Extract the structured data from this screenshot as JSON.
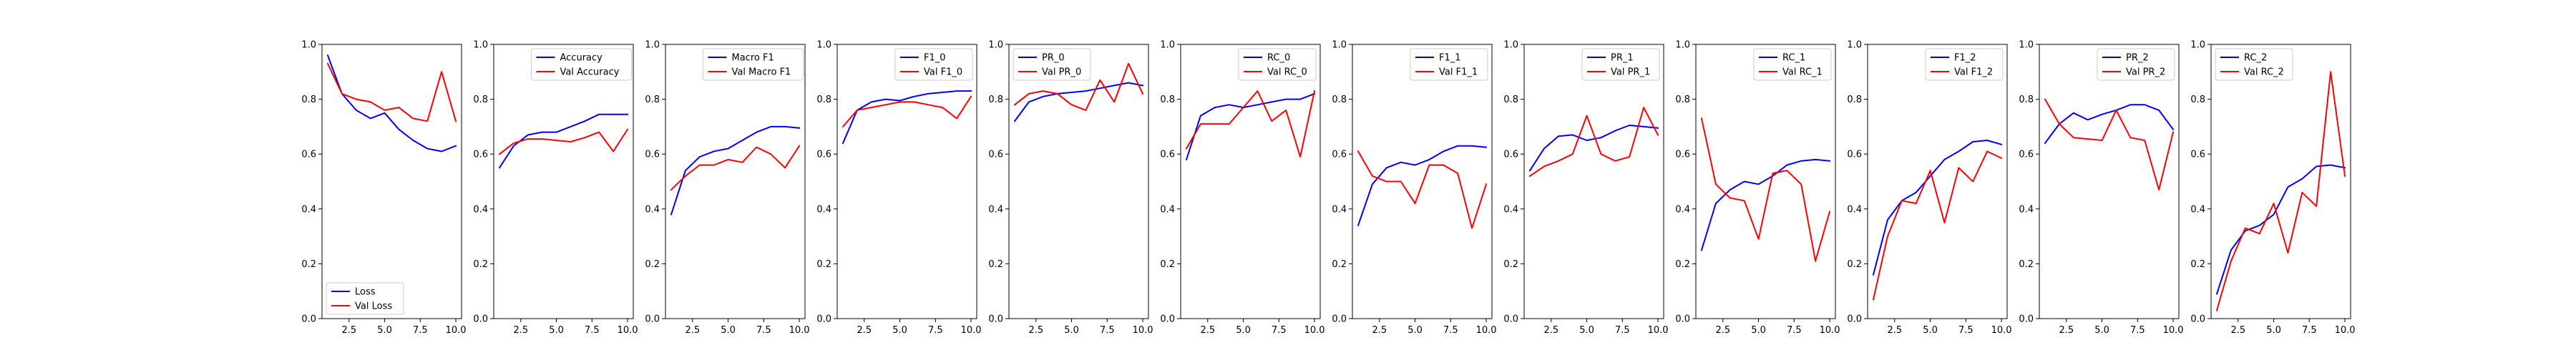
{
  "chart_data": [
    {
      "type": "line",
      "xlim": [
        0.6,
        10.4
      ],
      "ylim": [
        0.0,
        1.0
      ],
      "xticks": [
        "2.5",
        "5.0",
        "7.5",
        "10.0"
      ],
      "yticks": [
        "0.0",
        "0.2",
        "0.4",
        "0.6",
        "0.8",
        "1.0"
      ],
      "legend": "lower-left",
      "x": [
        1,
        2,
        3,
        4,
        5,
        6,
        7,
        8,
        9,
        10
      ],
      "series": [
        {
          "name": "Loss",
          "color": "#0000ff",
          "values": [
            0.96,
            0.82,
            0.76,
            0.73,
            0.75,
            0.69,
            0.65,
            0.62,
            0.61,
            0.63
          ]
        },
        {
          "name": "Val Loss",
          "color": "#ff0000",
          "values": [
            0.93,
            0.82,
            0.8,
            0.79,
            0.76,
            0.77,
            0.73,
            0.72,
            0.9,
            0.72
          ]
        }
      ]
    },
    {
      "type": "line",
      "xlim": [
        0.6,
        10.4
      ],
      "ylim": [
        0.0,
        1.0
      ],
      "xticks": [
        "2.5",
        "5.0",
        "7.5",
        "10.0"
      ],
      "yticks": [
        "0.0",
        "0.2",
        "0.4",
        "0.6",
        "0.8",
        "1.0"
      ],
      "legend": "upper-center",
      "x": [
        1,
        2,
        3,
        4,
        5,
        6,
        7,
        8,
        9,
        10
      ],
      "series": [
        {
          "name": "Accuracy",
          "color": "#0000ff",
          "values": [
            0.55,
            0.63,
            0.67,
            0.68,
            0.68,
            0.7,
            0.72,
            0.745,
            0.745,
            0.745
          ]
        },
        {
          "name": "Val Accuracy",
          "color": "#ff0000",
          "values": [
            0.6,
            0.64,
            0.655,
            0.655,
            0.65,
            0.645,
            0.66,
            0.68,
            0.61,
            0.69
          ]
        }
      ]
    },
    {
      "type": "line",
      "xlim": [
        0.6,
        10.4
      ],
      "ylim": [
        0.0,
        1.0
      ],
      "xticks": [
        "2.5",
        "5.0",
        "7.5",
        "10.0"
      ],
      "yticks": [
        "0.0",
        "0.2",
        "0.4",
        "0.6",
        "0.8",
        "1.0"
      ],
      "legend": "upper-center",
      "x": [
        1,
        2,
        3,
        4,
        5,
        6,
        7,
        8,
        9,
        10
      ],
      "series": [
        {
          "name": "Macro F1",
          "color": "#0000ff",
          "values": [
            0.38,
            0.54,
            0.59,
            0.61,
            0.62,
            0.65,
            0.68,
            0.7,
            0.7,
            0.695
          ]
        },
        {
          "name": "Val Macro F1",
          "color": "#ff0000",
          "values": [
            0.47,
            0.52,
            0.56,
            0.56,
            0.58,
            0.57,
            0.625,
            0.6,
            0.55,
            0.63
          ]
        }
      ]
    },
    {
      "type": "line",
      "xlim": [
        0.6,
        10.4
      ],
      "ylim": [
        0.0,
        1.0
      ],
      "xticks": [
        "2.5",
        "5.0",
        "7.5",
        "10.0"
      ],
      "yticks": [
        "0.0",
        "0.2",
        "0.4",
        "0.6",
        "0.8",
        "1.0"
      ],
      "legend": "upper-right",
      "x": [
        1,
        2,
        3,
        4,
        5,
        6,
        7,
        8,
        9,
        10
      ],
      "series": [
        {
          "name": "F1_0",
          "color": "#0000ff",
          "values": [
            0.64,
            0.76,
            0.79,
            0.8,
            0.795,
            0.81,
            0.82,
            0.825,
            0.83,
            0.83
          ]
        },
        {
          "name": "Val F1_0",
          "color": "#ff0000",
          "values": [
            0.7,
            0.76,
            0.77,
            0.78,
            0.79,
            0.79,
            0.78,
            0.77,
            0.73,
            0.81
          ]
        }
      ]
    },
    {
      "type": "line",
      "xlim": [
        0.6,
        10.4
      ],
      "ylim": [
        0.0,
        1.0
      ],
      "xticks": [
        "2.5",
        "5.0",
        "7.5",
        "10.0"
      ],
      "yticks": [
        "0.0",
        "0.2",
        "0.4",
        "0.6",
        "0.8",
        "1.0"
      ],
      "legend": "upper-left",
      "x": [
        1,
        2,
        3,
        4,
        5,
        6,
        7,
        8,
        9,
        10
      ],
      "series": [
        {
          "name": "PR_0",
          "color": "#0000ff",
          "values": [
            0.72,
            0.79,
            0.81,
            0.82,
            0.825,
            0.83,
            0.84,
            0.85,
            0.86,
            0.85
          ]
        },
        {
          "name": "Val PR_0",
          "color": "#ff0000",
          "values": [
            0.78,
            0.82,
            0.83,
            0.82,
            0.78,
            0.76,
            0.87,
            0.79,
            0.93,
            0.82
          ]
        }
      ]
    },
    {
      "type": "line",
      "xlim": [
        0.6,
        10.4
      ],
      "ylim": [
        0.0,
        1.0
      ],
      "xticks": [
        "2.5",
        "5.0",
        "7.5",
        "10.0"
      ],
      "yticks": [
        "0.0",
        "0.2",
        "0.4",
        "0.6",
        "0.8",
        "1.0"
      ],
      "legend": "upper-right",
      "x": [
        1,
        2,
        3,
        4,
        5,
        6,
        7,
        8,
        9,
        10
      ],
      "series": [
        {
          "name": "RC_0",
          "color": "#0000ff",
          "values": [
            0.58,
            0.74,
            0.77,
            0.78,
            0.77,
            0.78,
            0.79,
            0.8,
            0.8,
            0.82
          ]
        },
        {
          "name": "Val RC_0",
          "color": "#ff0000",
          "values": [
            0.62,
            0.71,
            0.71,
            0.71,
            0.77,
            0.83,
            0.72,
            0.76,
            0.59,
            0.83
          ]
        }
      ]
    },
    {
      "type": "line",
      "xlim": [
        0.6,
        10.4
      ],
      "ylim": [
        0.0,
        1.0
      ],
      "xticks": [
        "2.5",
        "5.0",
        "7.5",
        "10.0"
      ],
      "yticks": [
        "0.0",
        "0.2",
        "0.4",
        "0.6",
        "0.8",
        "1.0"
      ],
      "legend": "upper-right",
      "x": [
        1,
        2,
        3,
        4,
        5,
        6,
        7,
        8,
        9,
        10
      ],
      "series": [
        {
          "name": "F1_1",
          "color": "#0000ff",
          "values": [
            0.34,
            0.49,
            0.55,
            0.57,
            0.56,
            0.58,
            0.61,
            0.63,
            0.63,
            0.625
          ]
        },
        {
          "name": "Val F1_1",
          "color": "#ff0000",
          "values": [
            0.61,
            0.52,
            0.5,
            0.5,
            0.42,
            0.56,
            0.56,
            0.53,
            0.33,
            0.49
          ]
        }
      ]
    },
    {
      "type": "line",
      "xlim": [
        0.6,
        10.4
      ],
      "ylim": [
        0.0,
        1.0
      ],
      "xticks": [
        "2.5",
        "5.0",
        "7.5",
        "10.0"
      ],
      "yticks": [
        "0.0",
        "0.2",
        "0.4",
        "0.6",
        "0.8",
        "1.0"
      ],
      "legend": "upper-right",
      "x": [
        1,
        2,
        3,
        4,
        5,
        6,
        7,
        8,
        9,
        10
      ],
      "series": [
        {
          "name": "PR_1",
          "color": "#0000ff",
          "values": [
            0.54,
            0.62,
            0.665,
            0.67,
            0.65,
            0.66,
            0.685,
            0.705,
            0.7,
            0.695
          ]
        },
        {
          "name": "Val PR_1",
          "color": "#ff0000",
          "values": [
            0.52,
            0.555,
            0.575,
            0.6,
            0.74,
            0.6,
            0.575,
            0.59,
            0.77,
            0.67
          ]
        }
      ]
    },
    {
      "type": "line",
      "xlim": [
        0.6,
        10.4
      ],
      "ylim": [
        0.0,
        1.0
      ],
      "xticks": [
        "2.5",
        "5.0",
        "7.5",
        "10.0"
      ],
      "yticks": [
        "0.0",
        "0.2",
        "0.4",
        "0.6",
        "0.8",
        "1.0"
      ],
      "legend": "upper-right",
      "x": [
        1,
        2,
        3,
        4,
        5,
        6,
        7,
        8,
        9,
        10
      ],
      "series": [
        {
          "name": "RC_1",
          "color": "#0000ff",
          "values": [
            0.25,
            0.42,
            0.47,
            0.5,
            0.49,
            0.52,
            0.56,
            0.575,
            0.58,
            0.575
          ]
        },
        {
          "name": "Val RC_1",
          "color": "#ff0000",
          "values": [
            0.73,
            0.49,
            0.44,
            0.43,
            0.29,
            0.53,
            0.54,
            0.49,
            0.21,
            0.39
          ]
        }
      ]
    },
    {
      "type": "line",
      "xlim": [
        0.6,
        10.4
      ],
      "ylim": [
        0.0,
        1.0
      ],
      "xticks": [
        "2.5",
        "5.0",
        "7.5",
        "10.0"
      ],
      "yticks": [
        "0.0",
        "0.2",
        "0.4",
        "0.6",
        "0.8",
        "1.0"
      ],
      "legend": "upper-right",
      "x": [
        1,
        2,
        3,
        4,
        5,
        6,
        7,
        8,
        9,
        10
      ],
      "series": [
        {
          "name": "F1_2",
          "color": "#0000ff",
          "values": [
            0.16,
            0.36,
            0.43,
            0.46,
            0.52,
            0.58,
            0.61,
            0.645,
            0.65,
            0.635
          ]
        },
        {
          "name": "Val F1_2",
          "color": "#ff0000",
          "values": [
            0.07,
            0.3,
            0.43,
            0.42,
            0.54,
            0.35,
            0.55,
            0.5,
            0.61,
            0.585
          ]
        }
      ]
    },
    {
      "type": "line",
      "xlim": [
        0.6,
        10.4
      ],
      "ylim": [
        0.0,
        1.0
      ],
      "xticks": [
        "2.5",
        "5.0",
        "7.5",
        "10.0"
      ],
      "yticks": [
        "0.0",
        "0.2",
        "0.4",
        "0.6",
        "0.8",
        "1.0"
      ],
      "legend": "upper-right",
      "x": [
        1,
        2,
        3,
        4,
        5,
        6,
        7,
        8,
        9,
        10
      ],
      "series": [
        {
          "name": "PR_2",
          "color": "#0000ff",
          "values": [
            0.64,
            0.71,
            0.75,
            0.725,
            0.745,
            0.76,
            0.78,
            0.78,
            0.76,
            0.69
          ]
        },
        {
          "name": "Val PR_2",
          "color": "#ff0000",
          "values": [
            0.8,
            0.71,
            0.66,
            0.655,
            0.65,
            0.76,
            0.66,
            0.65,
            0.47,
            0.68
          ]
        }
      ]
    },
    {
      "type": "line",
      "xlim": [
        0.6,
        10.4
      ],
      "ylim": [
        0.0,
        1.0
      ],
      "xticks": [
        "2.5",
        "5.0",
        "7.5",
        "10.0"
      ],
      "yticks": [
        "0.0",
        "0.2",
        "0.4",
        "0.6",
        "0.8",
        "1.0"
      ],
      "legend": "upper-left",
      "x": [
        1,
        2,
        3,
        4,
        5,
        6,
        7,
        8,
        9,
        10
      ],
      "series": [
        {
          "name": "RC_2",
          "color": "#0000ff",
          "values": [
            0.09,
            0.25,
            0.32,
            0.34,
            0.38,
            0.48,
            0.51,
            0.555,
            0.56,
            0.55
          ]
        },
        {
          "name": "Val RC_2",
          "color": "#ff0000",
          "values": [
            0.03,
            0.21,
            0.33,
            0.31,
            0.42,
            0.24,
            0.46,
            0.41,
            0.9,
            0.52
          ]
        }
      ]
    }
  ]
}
